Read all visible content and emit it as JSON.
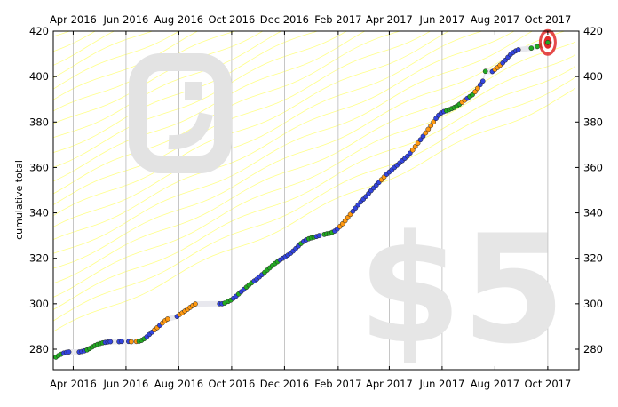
{
  "chart_data": {
    "type": "scatter",
    "ylabel": "cumulative total",
    "xlabel": "",
    "title": "",
    "ylim": [
      271,
      420
    ],
    "xlim": [
      "2016-03-09",
      "2017-11-06"
    ],
    "x_ticks": [
      {
        "date": "2016-04-01",
        "label": "Apr 2016"
      },
      {
        "date": "2016-06-01",
        "label": "Jun 2016"
      },
      {
        "date": "2016-08-01",
        "label": "Aug 2016"
      },
      {
        "date": "2016-10-01",
        "label": "Oct 2016"
      },
      {
        "date": "2016-12-01",
        "label": "Dec 2016"
      },
      {
        "date": "2017-02-01",
        "label": "Feb 2017"
      },
      {
        "date": "2017-04-01",
        "label": "Apr 2017"
      },
      {
        "date": "2017-06-01",
        "label": "Jun 2017"
      },
      {
        "date": "2017-08-01",
        "label": "Aug 2017"
      },
      {
        "date": "2017-10-01",
        "label": "Oct 2017"
      }
    ],
    "y_ticks": [
      280,
      300,
      320,
      340,
      360,
      380,
      400,
      420
    ],
    "grid": "vertical",
    "watermark": {
      "text": "$5"
    },
    "target": {
      "date": "2017-10-01",
      "value": 415
    },
    "colors": {
      "green": "#22aa22",
      "orange": "#ff9911",
      "blue": "#3344dd",
      "guide": "#ffff88",
      "trend_band": "#e8e8ee",
      "target_red": "#e02a2a"
    },
    "points": [
      {
        "x": "2016-03-12",
        "y": 276.5,
        "c": "green"
      },
      {
        "x": "2016-03-15",
        "y": 277.2,
        "c": "green"
      },
      {
        "x": "2016-03-18",
        "y": 277.8,
        "c": "green"
      },
      {
        "x": "2016-03-21",
        "y": 278.3,
        "c": "blue"
      },
      {
        "x": "2016-03-24",
        "y": 278.6,
        "c": "blue"
      },
      {
        "x": "2016-03-27",
        "y": 278.8,
        "c": "blue"
      },
      {
        "x": "2016-04-08",
        "y": 278.8,
        "c": "blue"
      },
      {
        "x": "2016-04-11",
        "y": 279.0,
        "c": "blue"
      },
      {
        "x": "2016-04-14",
        "y": 279.3,
        "c": "blue"
      },
      {
        "x": "2016-04-17",
        "y": 279.7,
        "c": "green"
      },
      {
        "x": "2016-04-20",
        "y": 280.3,
        "c": "green"
      },
      {
        "x": "2016-04-23",
        "y": 281.0,
        "c": "green"
      },
      {
        "x": "2016-04-26",
        "y": 281.6,
        "c": "green"
      },
      {
        "x": "2016-04-29",
        "y": 282.1,
        "c": "green"
      },
      {
        "x": "2016-05-02",
        "y": 282.5,
        "c": "green"
      },
      {
        "x": "2016-05-05",
        "y": 282.8,
        "c": "green"
      },
      {
        "x": "2016-05-08",
        "y": 283.0,
        "c": "blue"
      },
      {
        "x": "2016-05-11",
        "y": 283.2,
        "c": "blue"
      },
      {
        "x": "2016-05-14",
        "y": 283.3,
        "c": "blue"
      },
      {
        "x": "2016-05-24",
        "y": 283.3,
        "c": "blue"
      },
      {
        "x": "2016-05-27",
        "y": 283.4,
        "c": "blue"
      },
      {
        "x": "2016-06-04",
        "y": 283.4,
        "c": "blue"
      },
      {
        "x": "2016-06-07",
        "y": 283.3,
        "c": "orange"
      },
      {
        "x": "2016-06-13",
        "y": 283.4,
        "c": "orange"
      },
      {
        "x": "2016-06-16",
        "y": 283.5,
        "c": "green"
      },
      {
        "x": "2016-06-19",
        "y": 283.9,
        "c": "green"
      },
      {
        "x": "2016-06-22",
        "y": 284.6,
        "c": "green"
      },
      {
        "x": "2016-06-25",
        "y": 285.5,
        "c": "blue"
      },
      {
        "x": "2016-06-28",
        "y": 286.5,
        "c": "blue"
      },
      {
        "x": "2016-07-01",
        "y": 287.5,
        "c": "blue"
      },
      {
        "x": "2016-07-04",
        "y": 288.5,
        "c": "orange"
      },
      {
        "x": "2016-07-07",
        "y": 289.5,
        "c": "orange"
      },
      {
        "x": "2016-07-10",
        "y": 290.5,
        "c": "blue"
      },
      {
        "x": "2016-07-13",
        "y": 291.5,
        "c": "orange"
      },
      {
        "x": "2016-07-16",
        "y": 292.5,
        "c": "orange"
      },
      {
        "x": "2016-07-19",
        "y": 293.3,
        "c": "orange"
      },
      {
        "x": "2016-07-30",
        "y": 294.4,
        "c": "blue"
      },
      {
        "x": "2016-08-02",
        "y": 295.3,
        "c": "orange"
      },
      {
        "x": "2016-08-05",
        "y": 296.0,
        "c": "orange"
      },
      {
        "x": "2016-08-08",
        "y": 296.8,
        "c": "orange"
      },
      {
        "x": "2016-08-11",
        "y": 297.6,
        "c": "orange"
      },
      {
        "x": "2016-08-14",
        "y": 298.4,
        "c": "orange"
      },
      {
        "x": "2016-08-17",
        "y": 299.2,
        "c": "orange"
      },
      {
        "x": "2016-08-20",
        "y": 299.9,
        "c": "orange"
      },
      {
        "x": "2016-09-17",
        "y": 300.0,
        "c": "blue"
      },
      {
        "x": "2016-09-20",
        "y": 300.0,
        "c": "blue"
      },
      {
        "x": "2016-09-23",
        "y": 300.3,
        "c": "green"
      },
      {
        "x": "2016-09-27",
        "y": 301.0,
        "c": "green"
      },
      {
        "x": "2016-09-30",
        "y": 301.6,
        "c": "green"
      },
      {
        "x": "2016-10-03",
        "y": 302.4,
        "c": "blue"
      },
      {
        "x": "2016-10-06",
        "y": 303.3,
        "c": "blue"
      },
      {
        "x": "2016-10-09",
        "y": 304.3,
        "c": "green"
      },
      {
        "x": "2016-10-12",
        "y": 305.3,
        "c": "blue"
      },
      {
        "x": "2016-10-15",
        "y": 306.3,
        "c": "blue"
      },
      {
        "x": "2016-10-18",
        "y": 307.3,
        "c": "green"
      },
      {
        "x": "2016-10-21",
        "y": 308.3,
        "c": "green"
      },
      {
        "x": "2016-10-24",
        "y": 309.2,
        "c": "green"
      },
      {
        "x": "2016-10-27",
        "y": 310.0,
        "c": "blue"
      },
      {
        "x": "2016-10-30",
        "y": 310.8,
        "c": "blue"
      },
      {
        "x": "2016-11-02",
        "y": 311.8,
        "c": "blue"
      },
      {
        "x": "2016-11-05",
        "y": 312.8,
        "c": "blue"
      },
      {
        "x": "2016-11-08",
        "y": 313.8,
        "c": "green"
      },
      {
        "x": "2016-11-11",
        "y": 314.8,
        "c": "green"
      },
      {
        "x": "2016-11-14",
        "y": 315.8,
        "c": "green"
      },
      {
        "x": "2016-11-17",
        "y": 316.8,
        "c": "green"
      },
      {
        "x": "2016-11-20",
        "y": 317.7,
        "c": "green"
      },
      {
        "x": "2016-11-23",
        "y": 318.5,
        "c": "green"
      },
      {
        "x": "2016-11-26",
        "y": 319.3,
        "c": "blue"
      },
      {
        "x": "2016-11-29",
        "y": 320.0,
        "c": "blue"
      },
      {
        "x": "2016-12-02",
        "y": 320.7,
        "c": "blue"
      },
      {
        "x": "2016-12-05",
        "y": 321.4,
        "c": "blue"
      },
      {
        "x": "2016-12-08",
        "y": 322.2,
        "c": "blue"
      },
      {
        "x": "2016-12-11",
        "y": 323.2,
        "c": "blue"
      },
      {
        "x": "2016-12-14",
        "y": 324.3,
        "c": "blue"
      },
      {
        "x": "2016-12-17",
        "y": 325.4,
        "c": "blue"
      },
      {
        "x": "2016-12-20",
        "y": 326.5,
        "c": "green"
      },
      {
        "x": "2016-12-23",
        "y": 327.4,
        "c": "blue"
      },
      {
        "x": "2016-12-26",
        "y": 328.1,
        "c": "blue"
      },
      {
        "x": "2016-12-29",
        "y": 328.6,
        "c": "green"
      },
      {
        "x": "2017-01-01",
        "y": 329.0,
        "c": "green"
      },
      {
        "x": "2017-01-04",
        "y": 329.3,
        "c": "green"
      },
      {
        "x": "2017-01-07",
        "y": 329.6,
        "c": "blue"
      },
      {
        "x": "2017-01-10",
        "y": 330.0,
        "c": "blue"
      },
      {
        "x": "2017-01-16",
        "y": 330.5,
        "c": "green"
      },
      {
        "x": "2017-01-19",
        "y": 330.8,
        "c": "green"
      },
      {
        "x": "2017-01-22",
        "y": 331.0,
        "c": "green"
      },
      {
        "x": "2017-01-25",
        "y": 331.4,
        "c": "green"
      },
      {
        "x": "2017-01-28",
        "y": 332.0,
        "c": "blue"
      },
      {
        "x": "2017-01-31",
        "y": 332.9,
        "c": "blue"
      },
      {
        "x": "2017-02-03",
        "y": 334.0,
        "c": "orange"
      },
      {
        "x": "2017-02-06",
        "y": 335.2,
        "c": "orange"
      },
      {
        "x": "2017-02-09",
        "y": 336.5,
        "c": "orange"
      },
      {
        "x": "2017-02-12",
        "y": 337.9,
        "c": "orange"
      },
      {
        "x": "2017-02-15",
        "y": 339.3,
        "c": "orange"
      },
      {
        "x": "2017-02-18",
        "y": 340.7,
        "c": "blue"
      },
      {
        "x": "2017-02-21",
        "y": 342.1,
        "c": "blue"
      },
      {
        "x": "2017-02-24",
        "y": 343.5,
        "c": "blue"
      },
      {
        "x": "2017-02-27",
        "y": 344.8,
        "c": "blue"
      },
      {
        "x": "2017-03-02",
        "y": 346.0,
        "c": "blue"
      },
      {
        "x": "2017-03-05",
        "y": 347.2,
        "c": "blue"
      },
      {
        "x": "2017-03-08",
        "y": 348.5,
        "c": "blue"
      },
      {
        "x": "2017-03-11",
        "y": 349.8,
        "c": "blue"
      },
      {
        "x": "2017-03-14",
        "y": 351.0,
        "c": "blue"
      },
      {
        "x": "2017-03-17",
        "y": 352.2,
        "c": "blue"
      },
      {
        "x": "2017-03-20",
        "y": 353.4,
        "c": "blue"
      },
      {
        "x": "2017-03-23",
        "y": 354.6,
        "c": "orange"
      },
      {
        "x": "2017-03-26",
        "y": 355.8,
        "c": "orange"
      },
      {
        "x": "2017-03-29",
        "y": 357.0,
        "c": "blue"
      },
      {
        "x": "2017-04-01",
        "y": 358.0,
        "c": "blue"
      },
      {
        "x": "2017-04-04",
        "y": 359.0,
        "c": "blue"
      },
      {
        "x": "2017-04-07",
        "y": 360.0,
        "c": "blue"
      },
      {
        "x": "2017-04-10",
        "y": 361.0,
        "c": "blue"
      },
      {
        "x": "2017-04-13",
        "y": 362.0,
        "c": "blue"
      },
      {
        "x": "2017-04-16",
        "y": 363.0,
        "c": "blue"
      },
      {
        "x": "2017-04-19",
        "y": 364.0,
        "c": "blue"
      },
      {
        "x": "2017-04-22",
        "y": 365.0,
        "c": "blue"
      },
      {
        "x": "2017-04-25",
        "y": 366.3,
        "c": "blue"
      },
      {
        "x": "2017-04-28",
        "y": 367.7,
        "c": "orange"
      },
      {
        "x": "2017-05-01",
        "y": 369.2,
        "c": "orange"
      },
      {
        "x": "2017-05-04",
        "y": 370.7,
        "c": "orange"
      },
      {
        "x": "2017-05-07",
        "y": 372.2,
        "c": "blue"
      },
      {
        "x": "2017-05-10",
        "y": 373.7,
        "c": "blue"
      },
      {
        "x": "2017-05-13",
        "y": 375.2,
        "c": "orange"
      },
      {
        "x": "2017-05-16",
        "y": 376.8,
        "c": "orange"
      },
      {
        "x": "2017-05-19",
        "y": 378.4,
        "c": "orange"
      },
      {
        "x": "2017-05-22",
        "y": 380.0,
        "c": "orange"
      },
      {
        "x": "2017-05-25",
        "y": 381.6,
        "c": "blue"
      },
      {
        "x": "2017-05-28",
        "y": 383.0,
        "c": "blue"
      },
      {
        "x": "2017-05-31",
        "y": 384.0,
        "c": "blue"
      },
      {
        "x": "2017-06-03",
        "y": 384.6,
        "c": "blue"
      },
      {
        "x": "2017-06-06",
        "y": 385.0,
        "c": "green"
      },
      {
        "x": "2017-06-09",
        "y": 385.4,
        "c": "green"
      },
      {
        "x": "2017-06-12",
        "y": 385.9,
        "c": "green"
      },
      {
        "x": "2017-06-15",
        "y": 386.4,
        "c": "green"
      },
      {
        "x": "2017-06-18",
        "y": 387.0,
        "c": "green"
      },
      {
        "x": "2017-06-21",
        "y": 387.8,
        "c": "green"
      },
      {
        "x": "2017-06-24",
        "y": 388.7,
        "c": "orange"
      },
      {
        "x": "2017-06-27",
        "y": 389.6,
        "c": "orange"
      },
      {
        "x": "2017-06-30",
        "y": 390.4,
        "c": "blue"
      },
      {
        "x": "2017-07-03",
        "y": 391.2,
        "c": "green"
      },
      {
        "x": "2017-07-06",
        "y": 392.0,
        "c": "green"
      },
      {
        "x": "2017-07-09",
        "y": 393.3,
        "c": "orange"
      },
      {
        "x": "2017-07-12",
        "y": 394.8,
        "c": "orange"
      },
      {
        "x": "2017-07-15",
        "y": 396.4,
        "c": "blue"
      },
      {
        "x": "2017-07-18",
        "y": 398.0,
        "c": "blue"
      },
      {
        "x": "2017-07-21",
        "y": 402.3,
        "c": "green"
      },
      {
        "x": "2017-07-29",
        "y": 402.2,
        "c": "blue"
      },
      {
        "x": "2017-08-01",
        "y": 403.1,
        "c": "orange"
      },
      {
        "x": "2017-08-04",
        "y": 404.0,
        "c": "orange"
      },
      {
        "x": "2017-08-07",
        "y": 405.0,
        "c": "orange"
      },
      {
        "x": "2017-08-10",
        "y": 406.0,
        "c": "blue"
      },
      {
        "x": "2017-08-13",
        "y": 407.2,
        "c": "blue"
      },
      {
        "x": "2017-08-16",
        "y": 408.5,
        "c": "blue"
      },
      {
        "x": "2017-08-19",
        "y": 409.7,
        "c": "blue"
      },
      {
        "x": "2017-08-22",
        "y": 410.6,
        "c": "blue"
      },
      {
        "x": "2017-08-25",
        "y": 411.3,
        "c": "blue"
      },
      {
        "x": "2017-08-28",
        "y": 411.8,
        "c": "blue"
      },
      {
        "x": "2017-09-12",
        "y": 412.5,
        "c": "green"
      },
      {
        "x": "2017-09-19",
        "y": 413.2,
        "c": "green"
      },
      {
        "x": "2017-09-24",
        "y": 413.8,
        "c": "green"
      },
      {
        "x": "2017-09-28",
        "y": 414.3,
        "c": "green"
      },
      {
        "x": "2017-10-01",
        "y": 414.8,
        "c": "green"
      }
    ]
  }
}
